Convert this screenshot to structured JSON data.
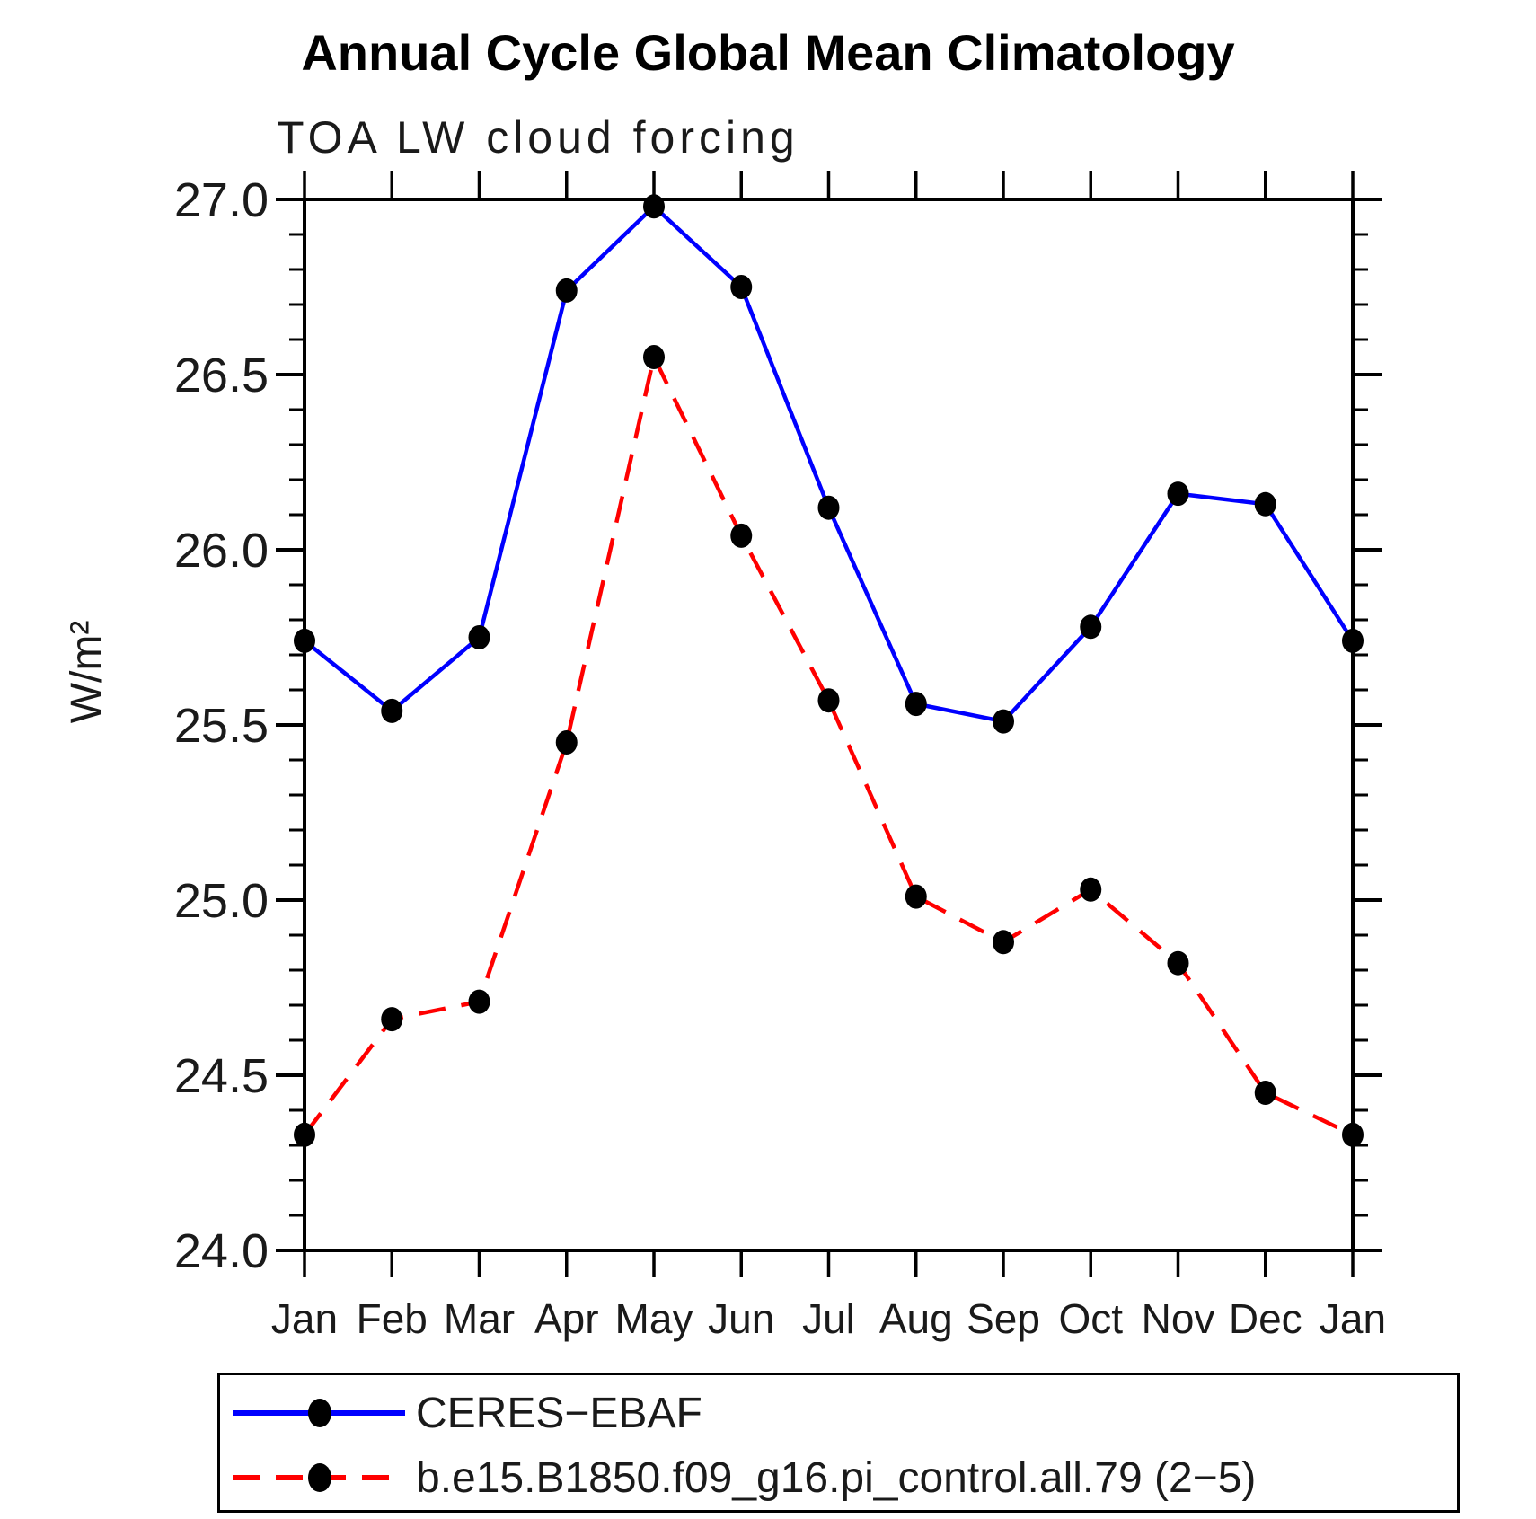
{
  "header": {
    "title": "Annual Cycle Global Mean Climatology",
    "subtitle": "TOA LW cloud forcing"
  },
  "axes": {
    "ylabel": "W/m²",
    "ytick_labels": [
      "27.0",
      "26.5",
      "26.0",
      "25.5",
      "25.0",
      "24.5",
      "24.0"
    ],
    "xtick_labels": [
      "Jan",
      "Feb",
      "Mar",
      "Apr",
      "May",
      "Jun",
      "Jul",
      "Aug",
      "Sep",
      "Oct",
      "Nov",
      "Dec",
      "Jan"
    ]
  },
  "legend": {
    "entries": [
      {
        "label": "CERES−EBAF",
        "line_style": "solid",
        "line_color": "#0000ff",
        "marker": "black-dot"
      },
      {
        "label": "b.e15.B1850.f09_g16.pi_control.all.79 (2−5)",
        "line_style": "dashed",
        "line_color": "#ff0000",
        "marker": "black-dot"
      }
    ]
  },
  "colors": {
    "observation_line": "#0000ff",
    "model_line": "#ff0000",
    "marker": "#000000",
    "axis": "#000000",
    "text": "#1a1a1a"
  },
  "chart_data": {
    "type": "line",
    "title": "Annual Cycle Global Mean Climatology",
    "subtitle": "TOA LW cloud forcing",
    "xlabel": "",
    "ylabel": "W/m²",
    "categories": [
      "Jan",
      "Feb",
      "Mar",
      "Apr",
      "May",
      "Jun",
      "Jul",
      "Aug",
      "Sep",
      "Oct",
      "Nov",
      "Dec",
      "Jan"
    ],
    "series": [
      {
        "name": "CERES−EBAF",
        "slug": "ceres-ebaf",
        "color": "#0000ff",
        "line_style": "solid",
        "marker": "filled-black-circle",
        "values": [
          25.74,
          25.54,
          25.75,
          26.74,
          26.98,
          26.75,
          26.12,
          25.56,
          25.51,
          25.78,
          26.16,
          26.13,
          25.74
        ]
      },
      {
        "name": "b.e15.B1850.f09_g16.pi_control.all.79 (2−5)",
        "slug": "pi-control-model",
        "color": "#ff0000",
        "line_style": "dashed",
        "marker": "filled-black-circle",
        "values": [
          24.33,
          24.66,
          24.71,
          25.45,
          26.55,
          26.04,
          25.57,
          25.01,
          24.88,
          25.03,
          24.82,
          24.45,
          24.33
        ]
      }
    ],
    "ylim": [
      24.0,
      27.0
    ],
    "ytick_major": 0.5,
    "ytick_minor": 0.1,
    "grid": false,
    "legend_position": "bottom"
  }
}
